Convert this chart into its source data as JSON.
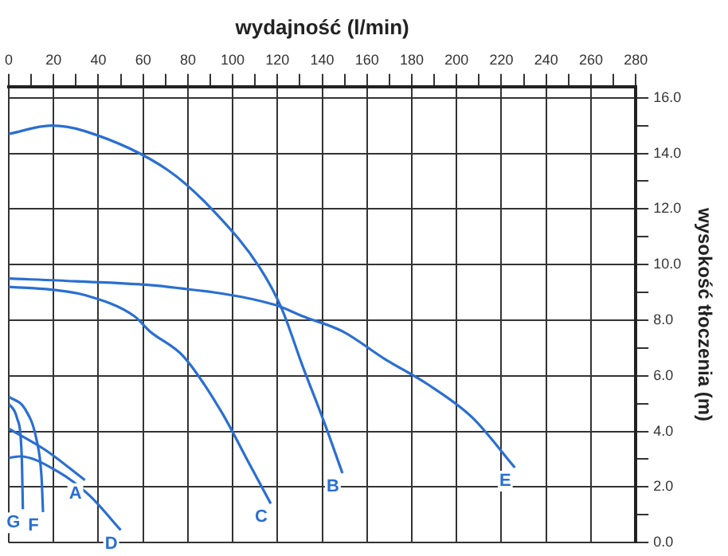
{
  "chart_data": {
    "type": "line",
    "xlabel": "wydajność (l/min)",
    "ylabel": "wysokość tłoczenia (m)",
    "xlim": [
      0,
      280
    ],
    "ylim": [
      0,
      16.4
    ],
    "xticks": [
      0,
      {
        "value": 10,
        "label": null
      },
      20,
      {
        "value": 30,
        "label": null
      },
      40,
      {
        "value": 50,
        "label": null
      },
      60,
      {
        "value": 70,
        "label": null
      },
      80,
      {
        "value": 90,
        "label": null
      },
      100,
      {
        "value": 110,
        "label": null
      },
      120,
      {
        "value": 130,
        "label": null
      },
      140,
      {
        "value": 150,
        "label": null
      },
      160,
      {
        "value": 170,
        "label": null
      },
      180,
      {
        "value": 190,
        "label": null
      },
      200,
      {
        "value": 210,
        "label": null
      },
      220,
      {
        "value": 230,
        "label": null
      },
      240,
      {
        "value": 250,
        "label": null
      },
      260,
      {
        "value": 270,
        "label": null
      },
      280
    ],
    "yticks": [
      {
        "value": 0,
        "label": "0.0"
      },
      {
        "value": 1,
        "label": null
      },
      {
        "value": 2,
        "label": "2.0"
      },
      {
        "value": 3,
        "label": null
      },
      {
        "value": 4,
        "label": "4.0"
      },
      {
        "value": 5,
        "label": null
      },
      {
        "value": 6,
        "label": "6.0"
      },
      {
        "value": 7,
        "label": null
      },
      {
        "value": 8,
        "label": "8.0"
      },
      {
        "value": 9,
        "label": null
      },
      {
        "value": 10,
        "label": "10.0"
      },
      {
        "value": 11,
        "label": null
      },
      {
        "value": 12,
        "label": "12.0"
      },
      {
        "value": 13,
        "label": null
      },
      {
        "value": 14,
        "label": "14.0"
      },
      {
        "value": 15,
        "label": null
      },
      {
        "value": 16,
        "label": "16.0"
      }
    ],
    "grid": true,
    "legend": false,
    "marker": "none",
    "line_style": "solid",
    "series": [
      {
        "name": "A",
        "color": "#2a6fd1",
        "x": [
          0,
          16,
          34
        ],
        "values": [
          4.1,
          3.35,
          2.25
        ]
      },
      {
        "name": "B",
        "color": "#2a6fd1",
        "x": [
          0,
          19,
          34,
          71,
          93,
          112,
          122,
          131,
          141,
          149
        ],
        "values": [
          14.7,
          15.0,
          14.8,
          13.4,
          11.8,
          9.9,
          8.4,
          6.4,
          4.3,
          2.5
        ]
      },
      {
        "name": "C",
        "color": "#2a6fd1",
        "x": [
          0,
          19,
          34,
          56,
          63,
          78,
          95,
          107,
          117
        ],
        "values": [
          9.2,
          9.1,
          8.9,
          8.15,
          7.6,
          6.7,
          4.7,
          2.9,
          1.4
        ]
      },
      {
        "name": "D",
        "color": "#2a6fd1",
        "x": [
          0,
          5,
          22,
          36,
          50
        ],
        "values": [
          3.05,
          3.1,
          2.55,
          1.7,
          0.45
        ]
      },
      {
        "name": "E",
        "color": "#2a6fd1",
        "x": [
          0,
          30,
          71,
          119,
          131,
          149,
          168,
          187,
          207,
          226
        ],
        "values": [
          9.5,
          9.4,
          9.2,
          8.55,
          8.15,
          7.6,
          6.6,
          5.7,
          4.5,
          2.7
        ]
      },
      {
        "name": "F",
        "color": "#2a6fd1",
        "x": [
          0,
          7.3,
          12.4,
          14.6,
          15.3
        ],
        "values": [
          5.25,
          4.8,
          3.7,
          2.4,
          1.1
        ]
      },
      {
        "name": "G",
        "color": "#2a6fd1",
        "x": [
          0,
          3.6,
          5.8,
          6.3
        ],
        "values": [
          5.0,
          4.5,
          3.1,
          1.2
        ]
      }
    ]
  }
}
